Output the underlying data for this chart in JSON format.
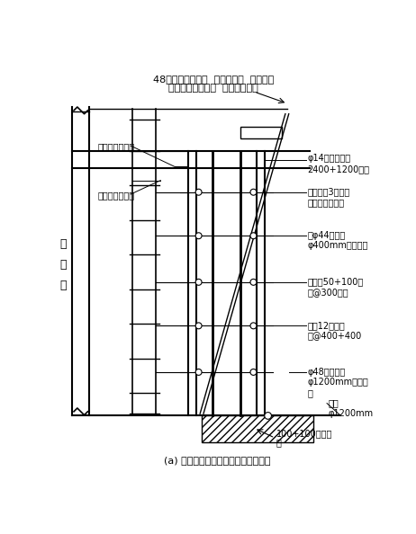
{
  "title_line1": "48钢管管支搭排架  底板处地锚  用钢筋与",
  "title_line2": "水平钢管拉撬压顶  防止撬板上浮",
  "subtitle": "(a) 地下室外墙双侧模板安装示意图一",
  "label_100wood": "100+100木方支",
  "label_ding": "顶",
  "label_dijiao": "地锚\nφ1200mm",
  "label_zhiding": "φ48钢管支顶\nφ1200mm横向排\n布",
  "label_zhijing12": "直径12穿墙螺\n栓@400+400",
  "label_cilong": "次龙骨50+100木\n方@300竖放",
  "label_shuang44": "双φ44扁钢管\nφ400mm横向排布",
  "label_henglong": "横龙骨用3牌卡牛\n螺母与撬板紧固",
  "label_14": "φ14厚木多层板\n2400+1200竖放",
  "label_yonglagan": "用绉杠与撬顶紧",
  "label_caozuo": "操作钢管脚手架",
  "label_weihu": "维\n护\n柱",
  "bg_color": "#ffffff",
  "line_color": "#000000",
  "font_size": 7,
  "title_font_size": 8
}
